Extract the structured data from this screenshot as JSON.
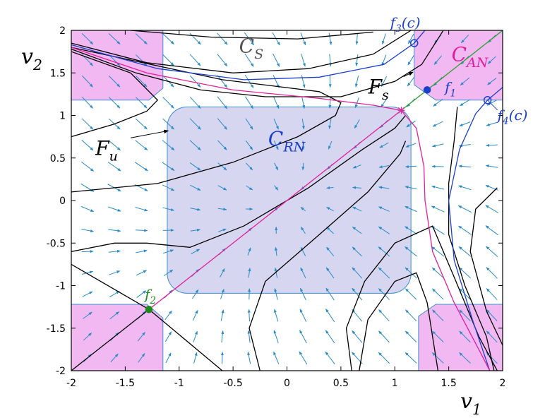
{
  "chart_data": {
    "type": "phase-portrait",
    "xlabel_main": "v",
    "xlabel_sub": "1",
    "ylabel_main": "v",
    "ylabel_sub": "2",
    "xlim": [
      -2,
      2
    ],
    "ylim": [
      -2,
      2
    ],
    "xticks": [
      "-2",
      "-1.5",
      "-1",
      "-0.5",
      "0",
      "0.5",
      "1",
      "1.5",
      "2"
    ],
    "yticks": [
      "-2",
      "-1.5",
      "-1",
      "-0.5",
      "0",
      "0.5",
      "1",
      "1.5",
      "2"
    ],
    "regions": [
      {
        "main": "C",
        "sub": "S",
        "x": -0.3,
        "y": 1.82,
        "color": "#555555"
      },
      {
        "main": "C",
        "sub": "AN",
        "x": 1.67,
        "y": 1.72,
        "color": "#e0209a"
      },
      {
        "main": "C",
        "sub": "RN",
        "x": -0.03,
        "y": 0.73,
        "color": "#1a3fcc"
      }
    ],
    "manifolds": [
      {
        "main": "F",
        "sub": "s",
        "x": 0.95,
        "y": 1.34,
        "arrow_to": [
          1.17,
          1.51
        ]
      },
      {
        "main": "F",
        "sub": "u",
        "x": -1.58,
        "y": 0.62,
        "arrow_to": [
          -1.1,
          0.82
        ]
      }
    ],
    "fixed_points": [
      {
        "main": "f",
        "sub": "1",
        "x": 1.3,
        "y": 1.3,
        "color": "#1a3fcc",
        "filled": true
      },
      {
        "main": "f",
        "sub": "2",
        "x": -1.28,
        "y": -1.28,
        "color": "#1c8a1c",
        "filled": true
      },
      {
        "main": "f",
        "sub": "3",
        "suffix": "(c)",
        "x": 1.18,
        "y": 1.85,
        "color": "#1a3fcc",
        "filled": false
      },
      {
        "main": "f",
        "sub": "4",
        "suffix": "(c)",
        "x": 1.86,
        "y": 1.18,
        "color": "#1a3fcc",
        "filled": false
      }
    ],
    "saddle_marker": {
      "x": 1.06,
      "y": 1.06,
      "color": "#e0209a"
    },
    "colors": {
      "region_fill_magenta": "#f2b8f2",
      "region_fill_blue": "#d6d6f0",
      "region_edge": "#3e8ed0",
      "vector_field": "#2a8bc6",
      "separatrix_magenta": "#e0209a",
      "diagonal_green": "#2ca02c",
      "trajectory_blue": "#1a3fcc",
      "trajectory_black": "#000000"
    }
  }
}
